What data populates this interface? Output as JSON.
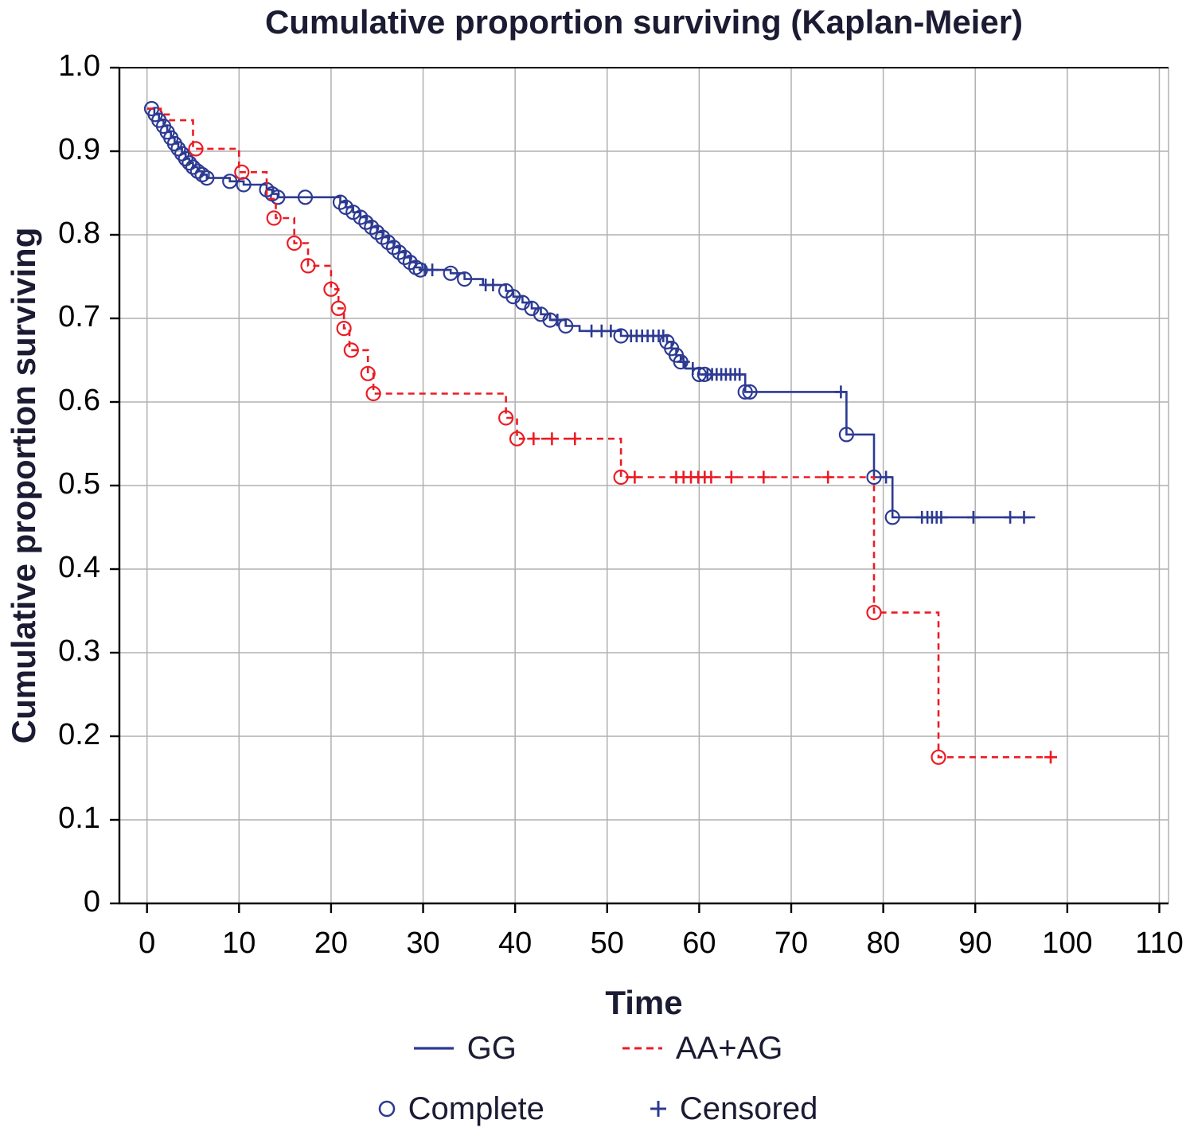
{
  "chart_data": {
    "type": "line",
    "subtype": "kaplan-meier-step",
    "title": "Cumulative proportion surviving (Kaplan-Meier)",
    "xlabel": "Time",
    "ylabel": "Cumulative proportion surviving",
    "xlim": [
      -3,
      111
    ],
    "ylim": [
      0,
      1.0
    ],
    "grid": true,
    "legend_position": "bottom",
    "xtick_values": [
      0,
      10,
      20,
      30,
      40,
      50,
      60,
      70,
      80,
      90,
      100,
      110
    ],
    "xtick_labels": [
      "0",
      "10",
      "20",
      "30",
      "40",
      "50",
      "60",
      "70",
      "80",
      "90",
      "100",
      "110"
    ],
    "ytick_values": [
      0,
      0.1,
      0.2,
      0.3,
      0.4,
      0.5,
      0.6,
      0.7,
      0.8,
      0.9,
      1.0
    ],
    "ytick_labels": [
      "0",
      "0.1",
      "0.2",
      "0.3",
      "0.4",
      "0.5",
      "0.6",
      "0.7",
      "0.8",
      "0.9",
      "1.0"
    ],
    "colors": {
      "grid": "#b0b0b0",
      "axis": "#000000",
      "text": "#1b1b33"
    },
    "legend": {
      "gg": "GG",
      "aaag": "AA+AG",
      "complete": "Complete",
      "censored": "Censored"
    },
    "series": [
      {
        "id": "gg",
        "name": "GG",
        "color": "#2c3a92",
        "line": "solid",
        "dash": null,
        "end": 96.5,
        "steps": [
          [
            0,
            0.951
          ],
          [
            0.8,
            0.944
          ],
          [
            1.3,
            0.937
          ],
          [
            1.8,
            0.93
          ],
          [
            2.2,
            0.923
          ],
          [
            2.6,
            0.916
          ],
          [
            3.0,
            0.909
          ],
          [
            3.4,
            0.903
          ],
          [
            3.8,
            0.897
          ],
          [
            4.2,
            0.891
          ],
          [
            4.6,
            0.886
          ],
          [
            5.0,
            0.881
          ],
          [
            5.5,
            0.876
          ],
          [
            6.0,
            0.872
          ],
          [
            6.5,
            0.868
          ],
          [
            9.0,
            0.864
          ],
          [
            10.5,
            0.86
          ],
          [
            13.0,
            0.854
          ],
          [
            13.6,
            0.849
          ],
          [
            14.2,
            0.845
          ],
          [
            21.0,
            0.839
          ],
          [
            21.6,
            0.833
          ],
          [
            22.4,
            0.827
          ],
          [
            23.2,
            0.821
          ],
          [
            23.8,
            0.815
          ],
          [
            24.4,
            0.809
          ],
          [
            25.0,
            0.803
          ],
          [
            25.6,
            0.797
          ],
          [
            26.2,
            0.791
          ],
          [
            26.8,
            0.785
          ],
          [
            27.4,
            0.779
          ],
          [
            28.0,
            0.773
          ],
          [
            28.6,
            0.767
          ],
          [
            29.2,
            0.761
          ],
          [
            29.7,
            0.758
          ],
          [
            33.0,
            0.754
          ],
          [
            34.5,
            0.747
          ],
          [
            36.5,
            0.74
          ],
          [
            39.0,
            0.733
          ],
          [
            39.8,
            0.726
          ],
          [
            40.8,
            0.719
          ],
          [
            41.8,
            0.712
          ],
          [
            42.8,
            0.705
          ],
          [
            43.8,
            0.698
          ],
          [
            45.5,
            0.691
          ],
          [
            47.0,
            0.685
          ],
          [
            51.5,
            0.679
          ],
          [
            56.5,
            0.672
          ],
          [
            57.0,
            0.664
          ],
          [
            57.5,
            0.656
          ],
          [
            58.0,
            0.648
          ],
          [
            58.5,
            0.64
          ],
          [
            60.0,
            0.633
          ],
          [
            65.0,
            0.612
          ],
          [
            76.0,
            0.561
          ],
          [
            79.0,
            0.51
          ],
          [
            81.0,
            0.462
          ]
        ],
        "complete": [
          [
            0.5,
            0.951
          ],
          [
            0.9,
            0.944
          ],
          [
            1.3,
            0.937
          ],
          [
            1.8,
            0.93
          ],
          [
            2.2,
            0.923
          ],
          [
            2.6,
            0.916
          ],
          [
            3.0,
            0.909
          ],
          [
            3.4,
            0.903
          ],
          [
            3.8,
            0.897
          ],
          [
            4.2,
            0.891
          ],
          [
            4.6,
            0.886
          ],
          [
            5.0,
            0.881
          ],
          [
            5.5,
            0.876
          ],
          [
            6.0,
            0.872
          ],
          [
            6.5,
            0.868
          ],
          [
            9.0,
            0.864
          ],
          [
            10.5,
            0.86
          ],
          [
            13.0,
            0.854
          ],
          [
            13.6,
            0.849
          ],
          [
            14.2,
            0.845
          ],
          [
            17.2,
            0.845
          ],
          [
            21.0,
            0.839
          ],
          [
            21.6,
            0.833
          ],
          [
            22.4,
            0.827
          ],
          [
            23.2,
            0.821
          ],
          [
            23.8,
            0.815
          ],
          [
            24.4,
            0.809
          ],
          [
            25.0,
            0.803
          ],
          [
            25.6,
            0.797
          ],
          [
            26.2,
            0.791
          ],
          [
            26.8,
            0.785
          ],
          [
            27.4,
            0.779
          ],
          [
            28.0,
            0.773
          ],
          [
            28.6,
            0.767
          ],
          [
            29.2,
            0.761
          ],
          [
            29.7,
            0.758
          ],
          [
            33.0,
            0.754
          ],
          [
            34.5,
            0.747
          ],
          [
            39.0,
            0.733
          ],
          [
            39.8,
            0.726
          ],
          [
            40.8,
            0.719
          ],
          [
            41.8,
            0.712
          ],
          [
            42.8,
            0.705
          ],
          [
            43.8,
            0.698
          ],
          [
            45.5,
            0.691
          ],
          [
            51.5,
            0.679
          ],
          [
            56.5,
            0.672
          ],
          [
            57.0,
            0.664
          ],
          [
            57.5,
            0.656
          ],
          [
            58.0,
            0.648
          ],
          [
            60.0,
            0.633
          ],
          [
            60.6,
            0.633
          ],
          [
            65.0,
            0.612
          ],
          [
            65.5,
            0.612
          ],
          [
            76.0,
            0.561
          ],
          [
            79.0,
            0.51
          ],
          [
            81.0,
            0.462
          ]
        ],
        "censored": [
          [
            30.2,
            0.758
          ],
          [
            31.0,
            0.758
          ],
          [
            36.8,
            0.74
          ],
          [
            37.6,
            0.74
          ],
          [
            44.6,
            0.698
          ],
          [
            48.3,
            0.685
          ],
          [
            49.4,
            0.685
          ],
          [
            50.4,
            0.685
          ],
          [
            52.6,
            0.679
          ],
          [
            53.2,
            0.679
          ],
          [
            53.8,
            0.679
          ],
          [
            54.4,
            0.679
          ],
          [
            55.0,
            0.679
          ],
          [
            55.6,
            0.679
          ],
          [
            56.1,
            0.679
          ],
          [
            58.3,
            0.648
          ],
          [
            59.3,
            0.64
          ],
          [
            60.9,
            0.633
          ],
          [
            61.4,
            0.633
          ],
          [
            61.9,
            0.633
          ],
          [
            62.4,
            0.633
          ],
          [
            62.9,
            0.633
          ],
          [
            63.4,
            0.633
          ],
          [
            63.9,
            0.633
          ],
          [
            64.4,
            0.633
          ],
          [
            75.4,
            0.612
          ],
          [
            80.3,
            0.51
          ],
          [
            84.2,
            0.462
          ],
          [
            84.8,
            0.462
          ],
          [
            85.3,
            0.462
          ],
          [
            85.8,
            0.462
          ],
          [
            86.3,
            0.462
          ],
          [
            89.8,
            0.462
          ],
          [
            93.8,
            0.462
          ],
          [
            95.3,
            0.462
          ]
        ]
      },
      {
        "id": "aaag",
        "name": "AA+AG",
        "color": "#ec1c24",
        "line": "dashed",
        "dash": "8 6",
        "end": 99,
        "steps": [
          [
            0,
            0.951
          ],
          [
            1.5,
            0.944
          ],
          [
            2.5,
            0.937
          ],
          [
            5.0,
            0.903
          ],
          [
            10.0,
            0.875
          ],
          [
            13.0,
            0.843
          ],
          [
            14.0,
            0.82
          ],
          [
            16.0,
            0.79
          ],
          [
            17.5,
            0.763
          ],
          [
            20.0,
            0.735
          ],
          [
            20.8,
            0.712
          ],
          [
            21.4,
            0.688
          ],
          [
            22.0,
            0.662
          ],
          [
            24.0,
            0.634
          ],
          [
            24.6,
            0.61
          ],
          [
            39.0,
            0.581
          ],
          [
            40.2,
            0.556
          ],
          [
            51.5,
            0.51
          ],
          [
            79.0,
            0.348
          ],
          [
            86.0,
            0.175
          ]
        ],
        "complete": [
          [
            5.3,
            0.903
          ],
          [
            10.3,
            0.875
          ],
          [
            13.8,
            0.82
          ],
          [
            16.0,
            0.79
          ],
          [
            17.5,
            0.763
          ],
          [
            20.0,
            0.735
          ],
          [
            20.8,
            0.712
          ],
          [
            21.4,
            0.688
          ],
          [
            22.2,
            0.662
          ],
          [
            24.0,
            0.634
          ],
          [
            24.6,
            0.61
          ],
          [
            39.0,
            0.581
          ],
          [
            40.2,
            0.556
          ],
          [
            51.5,
            0.51
          ],
          [
            79.0,
            0.348
          ],
          [
            86.0,
            0.175
          ]
        ],
        "censored": [
          [
            42.0,
            0.556
          ],
          [
            44.0,
            0.556
          ],
          [
            46.5,
            0.556
          ],
          [
            53.0,
            0.51
          ],
          [
            57.5,
            0.51
          ],
          [
            58.3,
            0.51
          ],
          [
            59.1,
            0.51
          ],
          [
            59.9,
            0.51
          ],
          [
            60.6,
            0.51
          ],
          [
            61.3,
            0.51
          ],
          [
            63.5,
            0.51
          ],
          [
            67.0,
            0.51
          ],
          [
            74.0,
            0.51
          ],
          [
            98.2,
            0.175
          ]
        ]
      }
    ]
  }
}
